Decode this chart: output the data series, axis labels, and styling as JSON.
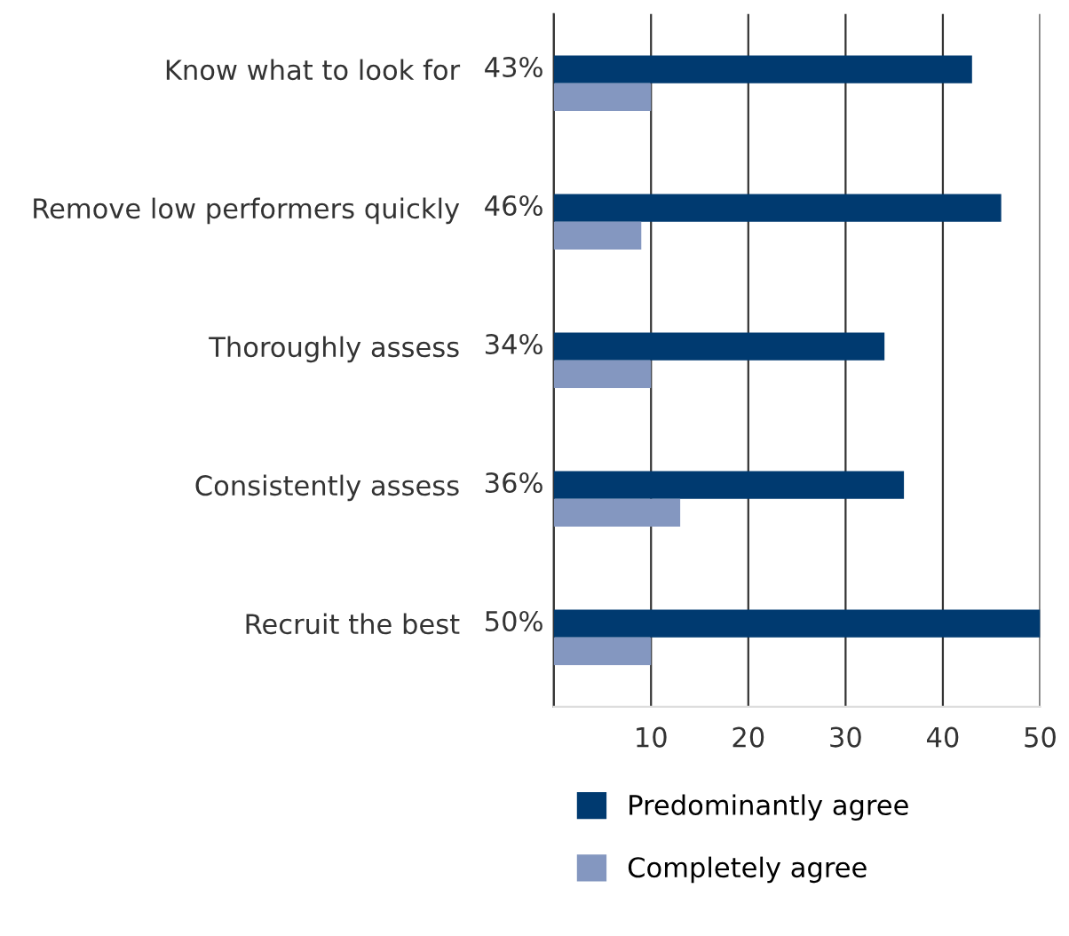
{
  "chart_data": {
    "type": "bar",
    "orientation": "horizontal",
    "categories": [
      "Know what to look for",
      "Remove low performers quickly",
      "Thoroughly assess",
      "Consistently assess",
      "Recruit the best"
    ],
    "series": [
      {
        "name": "Predominantly agree",
        "color": "#003a70",
        "values": [
          43,
          46,
          34,
          36,
          50
        ],
        "value_labels": [
          "43%",
          "46%",
          "34%",
          "36%",
          "50%"
        ]
      },
      {
        "name": "Completely agree",
        "color": "#8497c0",
        "values": [
          10,
          9,
          10,
          13,
          10
        ]
      }
    ],
    "xlim": [
      0,
      50
    ],
    "xticks": [
      {
        "value": 0,
        "label": null
      },
      10,
      20,
      30,
      40,
      50
    ],
    "grid": "x",
    "legend": "bottom"
  }
}
